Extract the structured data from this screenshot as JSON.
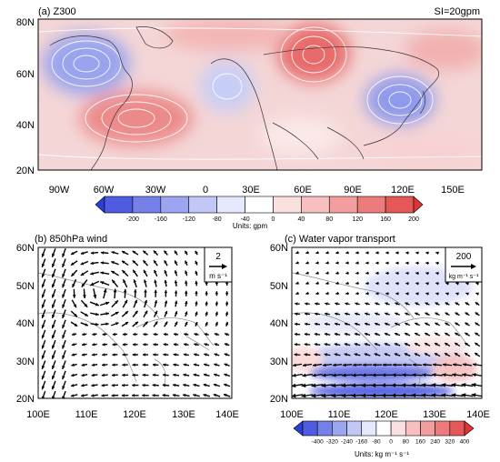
{
  "panel_a": {
    "title": "(a) Z300",
    "si_label": "SI=20gpm",
    "lat_labels": [
      "80N",
      "60N",
      "40N",
      "20N"
    ],
    "lon_labels": [
      "90W",
      "60W",
      "30W",
      "0",
      "30E",
      "60E",
      "90E",
      "120E",
      "150E"
    ],
    "colorbar": {
      "ticks": [
        "-200",
        "-160",
        "-120",
        "-80",
        "-40",
        "0",
        "40",
        "80",
        "120",
        "160",
        "200"
      ],
      "units": "Units: gpm",
      "colors": [
        "#2d3ed6",
        "#4f5be0",
        "#7580e8",
        "#9ca5ef",
        "#c2c8f5",
        "#e6e8fb",
        "#ffffff",
        "#fbe0e0",
        "#f7bfbf",
        "#f29e9e",
        "#ec7b7b",
        "#e55858",
        "#dd3535"
      ]
    }
  },
  "panel_b": {
    "title": "(b) 850hPa wind",
    "ref_value": "2",
    "ref_units": "m s⁻¹",
    "lat_labels": [
      "60N",
      "50N",
      "40N",
      "30N",
      "20N"
    ],
    "lon_labels": [
      "100E",
      "110E",
      "120E",
      "130E",
      "140E"
    ]
  },
  "panel_c": {
    "title": "(c) Water vapor transport",
    "ref_value": "200",
    "ref_units": "kg m⁻¹ s⁻¹",
    "lat_labels": [
      "60N",
      "50N",
      "40N",
      "30N",
      "20N"
    ],
    "lon_labels": [
      "100E",
      "110E",
      "120E",
      "130E",
      "140E"
    ],
    "colorbar": {
      "ticks": [
        "-400",
        "-320",
        "-240",
        "-160",
        "-80",
        "0",
        "80",
        "160",
        "240",
        "320",
        "400"
      ],
      "units": "Units: kg m⁻¹ s⁻¹",
      "colors": [
        "#2d3ed6",
        "#4f5be0",
        "#7580e8",
        "#9ca5ef",
        "#c2c8f5",
        "#e6e8fb",
        "#ffffff",
        "#fbe0e0",
        "#f7bfbf",
        "#f29e9e",
        "#ec7b7b",
        "#e55858",
        "#dd3535"
      ]
    }
  }
}
